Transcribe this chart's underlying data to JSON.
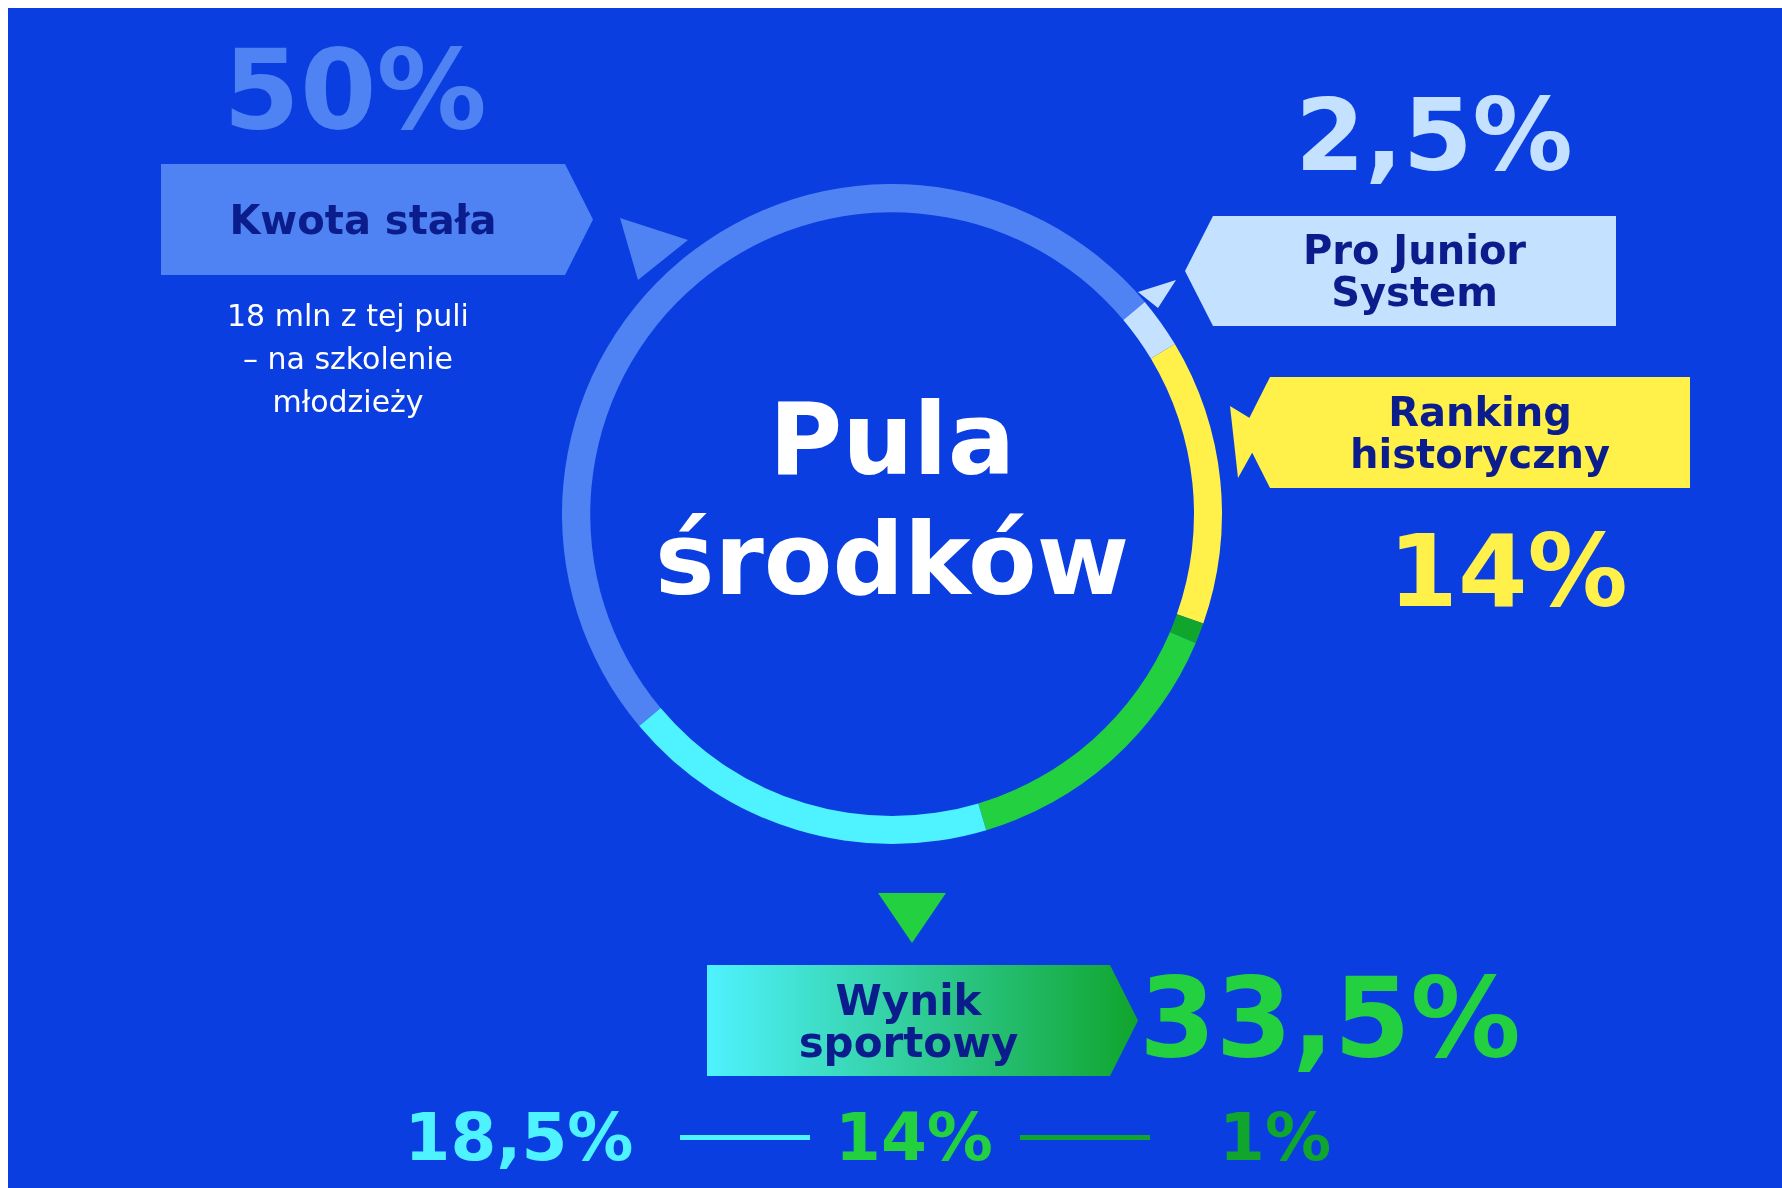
{
  "chart_data": {
    "type": "donut",
    "title": "Pula środków",
    "categories": [
      "Kwota stała",
      "Pro Junior System",
      "Ranking historyczny",
      null,
      null,
      null
    ],
    "values": [
      50,
      2.5,
      14,
      1,
      14,
      18.5
    ],
    "value_labels": [
      "50%",
      "2,5%",
      "14%",
      null,
      null,
      null
    ],
    "colors": [
      "#4f82f2",
      "#c4e2ff",
      "#fff04a",
      "#10a52d",
      "#22d040",
      "#4ff2ff"
    ],
    "annotations": [
      "18 mln z tej puli – na szkolenie młodzieży",
      "Wynik sportowy",
      "33,5%",
      "18,5%",
      "14%",
      "1%"
    ]
  }
}
